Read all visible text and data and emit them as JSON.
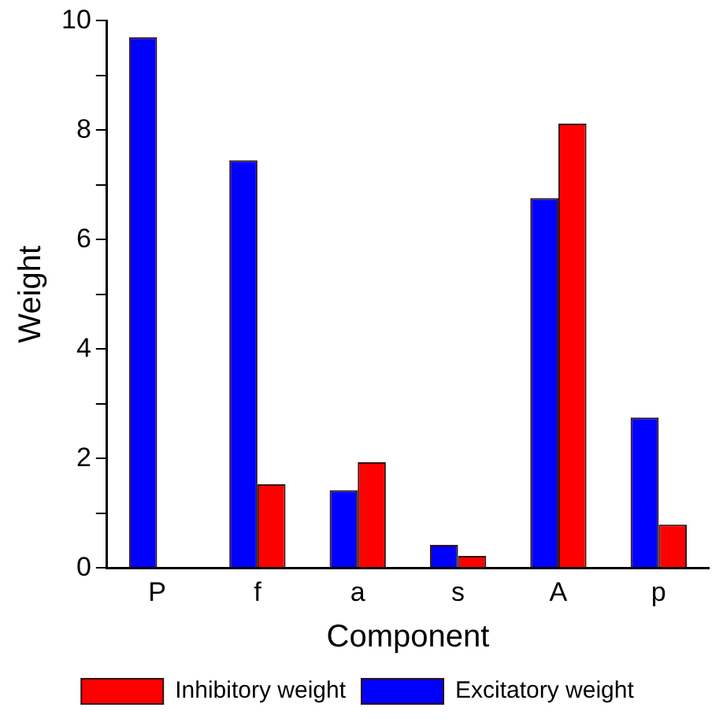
{
  "chart_data": {
    "type": "bar",
    "xlabel": "Component",
    "ylabel": "Weight",
    "categories": [
      "P",
      "f",
      "a",
      "s",
      "A",
      "p"
    ],
    "series": [
      {
        "name": "Excitatory weight",
        "color": "#0000ff",
        "values": [
          9.7,
          7.45,
          1.42,
          0.42,
          6.76,
          2.75
        ]
      },
      {
        "name": "Inhibitory weight",
        "color": "#ff0000",
        "values": [
          null,
          1.53,
          1.93,
          0.22,
          8.12,
          0.79
        ]
      }
    ],
    "ylim": [
      0,
      10
    ],
    "yticks": [
      0,
      {
        "value": 1,
        "label": null
      },
      2,
      {
        "value": 3,
        "label": null
      },
      4,
      {
        "value": 5,
        "label": null
      },
      6,
      {
        "value": 7,
        "label": null
      },
      8,
      {
        "value": 9,
        "label": null
      },
      10
    ],
    "grid": false,
    "legend": "bottom"
  }
}
